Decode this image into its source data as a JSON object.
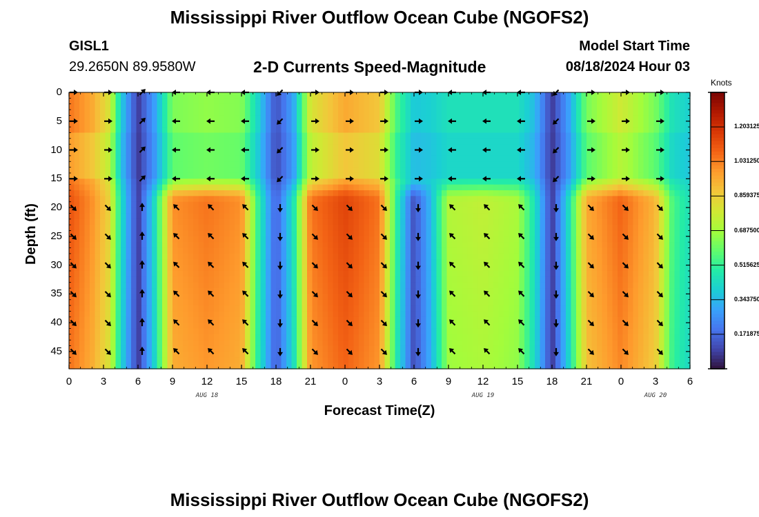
{
  "header": {
    "title": "Mississippi River Outflow Ocean Cube (NGOFS2)",
    "station": "GISL1",
    "location": "29.2650N  89.9580W",
    "subtitle": "2-D Currents Speed-Magnitude",
    "model_start_label": "Model Start Time",
    "model_start_value": "08/18/2024 Hour 03",
    "bottom_title": "Mississippi River Outflow Ocean Cube (NGOFS2)"
  },
  "colors": {
    "palette": [
      "#30123b",
      "#4145ab",
      "#4675ed",
      "#39a2fc",
      "#1bcfd4",
      "#24eca6",
      "#61fc6c",
      "#a4fc3b",
      "#d1e834",
      "#f3c63a",
      "#fe9b2d",
      "#f36315",
      "#d93806",
      "#b11901",
      "#7a0403"
    ]
  },
  "chart_data": {
    "type": "heatmap",
    "title": "2-D Currents Speed-Magnitude",
    "xlabel": "Forecast Time(Z)",
    "ylabel": "Depth (ft)",
    "x_tick_labels": [
      "0",
      "3",
      "6",
      "9",
      "12",
      "15",
      "18",
      "21",
      "0",
      "3",
      "6",
      "9",
      "12",
      "15",
      "18",
      "21",
      "0",
      "3",
      "6"
    ],
    "x_hours": [
      0,
      3,
      6,
      9,
      12,
      15,
      18,
      21,
      24,
      27,
      30,
      33,
      36,
      39,
      42,
      45,
      48,
      51,
      54
    ],
    "date_labels": [
      {
        "label": "AUG 18",
        "hour": 12
      },
      {
        "label": "AUG 19",
        "hour": 36
      },
      {
        "label": "AUG 20",
        "hour": 51
      }
    ],
    "y_ticks": [
      0,
      5,
      10,
      15,
      20,
      25,
      30,
      35,
      40,
      45
    ],
    "ylim": [
      0,
      48
    ],
    "xlim": [
      0,
      54
    ],
    "colorbar": {
      "units": "Knots",
      "range": [
        0,
        1.375
      ],
      "tick_labels": [
        "1.203125",
        "1.031250",
        "0.859375",
        "0.687500",
        "0.515625",
        "0.343750",
        "0.171875"
      ],
      "tick_values": [
        1.203125,
        1.03125,
        0.859375,
        0.6875,
        0.515625,
        0.34375,
        0.171875
      ]
    },
    "speed_profile": {
      "hours": [
        0,
        2,
        3.5,
        4.5,
        6,
        7.5,
        9,
        12,
        15,
        16.5,
        18,
        19.5,
        21,
        24,
        27,
        28.5,
        30,
        31.5,
        33,
        36,
        39,
        40.5,
        42,
        43.5,
        45,
        48,
        51,
        52.5,
        54
      ],
      "upper_speed": [
        1.05,
        0.95,
        0.8,
        0.4,
        0.08,
        0.3,
        0.63,
        0.66,
        0.64,
        0.4,
        0.12,
        0.3,
        0.8,
        0.95,
        0.88,
        0.55,
        0.38,
        0.4,
        0.45,
        0.45,
        0.45,
        0.35,
        0.08,
        0.3,
        0.62,
        0.78,
        0.62,
        0.45,
        0.4
      ],
      "lower_speed": [
        1.12,
        1.0,
        0.85,
        0.45,
        0.08,
        0.45,
        1.0,
        1.05,
        1.0,
        0.5,
        0.15,
        0.45,
        1.05,
        1.15,
        1.05,
        0.5,
        0.12,
        0.35,
        0.72,
        0.75,
        0.7,
        0.45,
        0.08,
        0.45,
        0.95,
        1.08,
        0.92,
        0.55,
        0.45
      ]
    },
    "vector_rows_depth": [
      0,
      5,
      10,
      15,
      20,
      25,
      30,
      35,
      40,
      45
    ],
    "vector_columns": [
      {
        "hour": 0,
        "upper_dir": "E",
        "lower_dir": "SE"
      },
      {
        "hour": 3,
        "upper_dir": "E",
        "lower_dir": "SE"
      },
      {
        "hour": 6,
        "upper_dir": "NE",
        "lower_dir": "N"
      },
      {
        "hour": 9,
        "upper_dir": "W",
        "lower_dir": "NW"
      },
      {
        "hour": 12,
        "upper_dir": "W",
        "lower_dir": "NW"
      },
      {
        "hour": 15,
        "upper_dir": "W",
        "lower_dir": "NW"
      },
      {
        "hour": 18,
        "upper_dir": "SW",
        "lower_dir": "S"
      },
      {
        "hour": 21,
        "upper_dir": "E",
        "lower_dir": "SE"
      },
      {
        "hour": 24,
        "upper_dir": "E",
        "lower_dir": "SE"
      },
      {
        "hour": 27,
        "upper_dir": "E",
        "lower_dir": "SE"
      },
      {
        "hour": 30,
        "upper_dir": "E",
        "lower_dir": "S"
      },
      {
        "hour": 33,
        "upper_dir": "W",
        "lower_dir": "NW"
      },
      {
        "hour": 36,
        "upper_dir": "W",
        "lower_dir": "NW"
      },
      {
        "hour": 39,
        "upper_dir": "W",
        "lower_dir": "NW"
      },
      {
        "hour": 42,
        "upper_dir": "SW",
        "lower_dir": "S"
      },
      {
        "hour": 45,
        "upper_dir": "E",
        "lower_dir": "SE"
      },
      {
        "hour": 48,
        "upper_dir": "E",
        "lower_dir": "SE"
      },
      {
        "hour": 51,
        "upper_dir": "E",
        "lower_dir": "SE"
      }
    ]
  }
}
